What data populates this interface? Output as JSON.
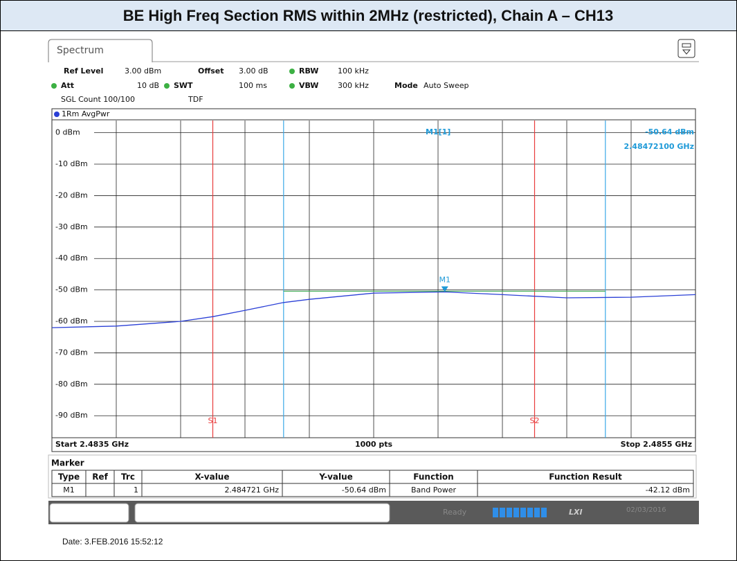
{
  "title": "BE High Freq Section RMS within 2MHz (restricted), Chain A – CH13",
  "tab": "Spectrum",
  "settings": {
    "ref_level": {
      "label": "Ref Level",
      "value": "3.00 dBm"
    },
    "offset": {
      "label": "Offset",
      "value": "3.00 dB"
    },
    "rbw": {
      "label": "RBW",
      "value": "100 kHz"
    },
    "att": {
      "label": "Att",
      "value": "10 dB"
    },
    "swt": {
      "label": "SWT",
      "value": "100 ms"
    },
    "vbw": {
      "label": "VBW",
      "value": "300 kHz"
    },
    "mode": {
      "label": "Mode",
      "value": "Auto Sweep"
    },
    "count": "SGL Count 100/100",
    "tdf": "TDF"
  },
  "chart_data": {
    "type": "line",
    "x": [
      2.4835,
      2.4837,
      2.4839,
      2.484,
      2.4841,
      2.48422,
      2.4843,
      2.4845,
      2.484721,
      2.4849,
      2.4851,
      2.4853,
      2.4855
    ],
    "series": [
      {
        "name": "1Rm AvgPwr",
        "color": "#2a3fd6",
        "values": [
          -62,
          -61.5,
          -60,
          -58.5,
          -56.5,
          -54,
          -53,
          -51,
          -50.64,
          -51.5,
          -52.5,
          -52.3,
          -51.5
        ]
      }
    ],
    "xlim": [
      2.4835,
      2.4855
    ],
    "xticks": [
      2.4835,
      2.4837,
      2.4839,
      2.4841,
      2.4843,
      2.4845,
      2.4847,
      2.4849,
      2.4851,
      2.4853,
      2.4855
    ],
    "ylim": [
      -97,
      3
    ],
    "yticks": [
      {
        "value": 0,
        "label": "0 dBm"
      },
      {
        "value": -10,
        "label": "-10 dBm"
      },
      {
        "value": -20,
        "label": "-20 dBm"
      },
      {
        "value": -30,
        "label": "-30 dBm"
      },
      {
        "value": -40,
        "label": "-40 dBm"
      },
      {
        "value": -50,
        "label": "-50 dBm"
      },
      {
        "value": -60,
        "label": "-60 dBm"
      },
      {
        "value": -70,
        "label": "-70 dBm"
      },
      {
        "value": -80,
        "label": "-80 dBm"
      },
      {
        "value": -90,
        "label": "-90 dBm"
      }
    ],
    "grid": true,
    "start_label": "Start 2.4835 GHz",
    "points_label": "1000 pts",
    "stop_label": "Stop 2.4855 GHz",
    "lines": [
      {
        "label": "S1",
        "x": 2.484,
        "color": "#e83a3a"
      },
      {
        "label": "S2",
        "x": 2.485,
        "color": "#e83a3a"
      },
      {
        "x": 2.48422,
        "color": "#3aa8e8"
      },
      {
        "x": 2.48522,
        "color": "#3aa8e8"
      }
    ],
    "band_level": -50.4,
    "band_color": "#3aa850",
    "marker": {
      "label": "M1",
      "x": 2.484721,
      "y": -50.64,
      "color": "#1e9ad8",
      "readout_name": "M1[1]",
      "readout_value": "-50.64 dBm",
      "readout_freq": "2.48472100 GHz"
    }
  },
  "marker_table": {
    "title": "Marker",
    "columns": [
      "Type",
      "Ref",
      "Trc",
      "X-value",
      "Y-value",
      "Function",
      "Function Result"
    ],
    "row": {
      "type": "M1",
      "trc": "1",
      "x_value": "2.484721 GHz",
      "y_value": "-50.64 dBm",
      "function": "Band Power",
      "result": "-42.12 dBm"
    }
  },
  "status": {
    "state": "Ready",
    "lxi": "LXI",
    "date": "02/03/2016"
  },
  "footer": "Date: 3.FEB.2016 15:52:12"
}
